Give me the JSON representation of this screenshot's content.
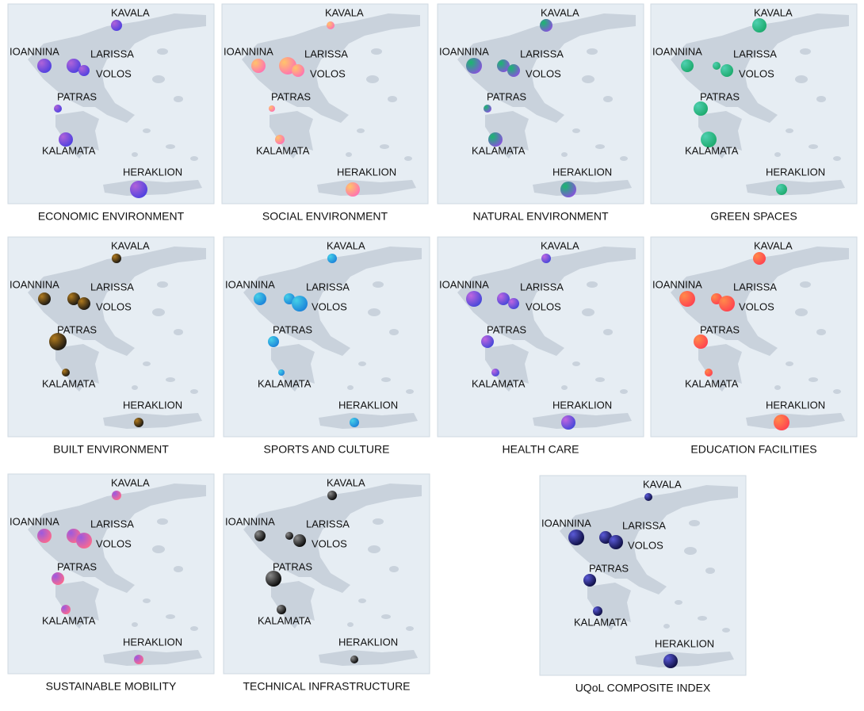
{
  "cities": [
    "KAVALA",
    "IOANNINA",
    "LARISSA",
    "VOLOS",
    "PATRAS",
    "KALAMATA",
    "HERAKLION"
  ],
  "panels": [
    {
      "title": "ECONOMIC ENVIRONMENT",
      "colors": [
        "#4a3fe0",
        "#b063d8"
      ],
      "values": [
        7,
        9,
        9,
        7,
        5,
        9,
        11
      ]
    },
    {
      "title": "SOCIAL ENVIRONMENT",
      "colors": [
        "#ff6fb5",
        "#ffc46a"
      ],
      "values": [
        5,
        9,
        11,
        8,
        4,
        6,
        9
      ]
    },
    {
      "title": "NATURAL ENVIRONMENT",
      "colors": [
        "#8a4fe0",
        "#19b86e"
      ],
      "values": [
        8,
        10,
        8,
        8,
        5,
        9,
        10
      ]
    },
    {
      "title": "GREEN SPACES",
      "colors": [
        "#1aa869",
        "#4fd0b0"
      ],
      "values": [
        9,
        8,
        5,
        8,
        9,
        10,
        7
      ]
    },
    {
      "title": "BUILT ENVIRONMENT",
      "colors": [
        "#111111",
        "#b07a1e"
      ],
      "values": [
        6,
        8,
        8,
        8,
        11,
        5,
        6
      ]
    },
    {
      "title": "SPORTS AND CULTURE",
      "colors": [
        "#1a7fd8",
        "#45d0e8"
      ],
      "values": [
        6,
        8,
        7,
        10,
        7,
        4,
        6
      ]
    },
    {
      "title": "HEALTH CARE",
      "colors": [
        "#3f46d8",
        "#c066e0"
      ],
      "values": [
        6,
        10,
        8,
        7,
        8,
        5,
        9
      ]
    },
    {
      "title": "EDUCATION FACILITIES",
      "colors": [
        "#ff3f50",
        "#ff8a4a"
      ],
      "values": [
        8,
        10,
        7,
        10,
        9,
        5,
        10
      ]
    },
    {
      "title": "SUSTAINABLE MOBILITY",
      "colors": [
        "#ff6a8a",
        "#9a5ae0"
      ],
      "values": [
        6,
        9,
        9,
        10,
        8,
        6,
        6
      ]
    },
    {
      "title": "TECHNICAL INFRASTRUCTURE",
      "colors": [
        "#000000",
        "#8a8a8a"
      ],
      "values": [
        6,
        7,
        5,
        8,
        10,
        6,
        5
      ]
    },
    {
      "title": "UQoL COMPOSITE INDEX",
      "colors": [
        "#0a0a3a",
        "#5a5ad8"
      ],
      "values": [
        5,
        10,
        8,
        9,
        8,
        6,
        9
      ]
    }
  ]
}
